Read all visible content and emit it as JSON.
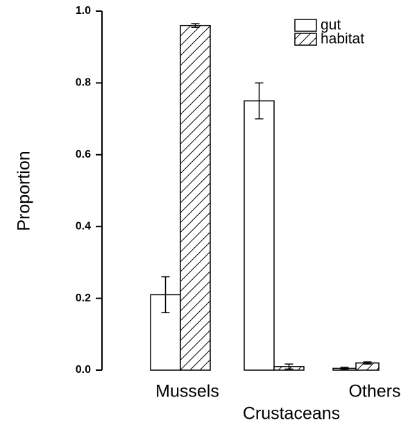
{
  "chart_data": {
    "type": "bar",
    "y_label": "Proportion",
    "categories": [
      "Mussels",
      "Crustaceans",
      "Others"
    ],
    "series": [
      {
        "name": "gut",
        "color": "#000000",
        "pattern": "none",
        "values": [
          0.21,
          0.75,
          0.005
        ],
        "errors": [
          0.05,
          0.05,
          0.003
        ]
      },
      {
        "name": "habitat",
        "color": "#000000",
        "pattern": "diagonal",
        "values": [
          0.96,
          0.01,
          0.02
        ],
        "errors": [
          0.005,
          0.007,
          0.003
        ]
      }
    ],
    "ylim": [
      0,
      1.0
    ],
    "yticks": [
      {
        "value": 0,
        "label": "0.0"
      },
      0.2,
      0.4,
      0.6,
      0.8,
      {
        "value": 1.0,
        "label": "1.0"
      }
    ],
    "legend": "upper right"
  }
}
